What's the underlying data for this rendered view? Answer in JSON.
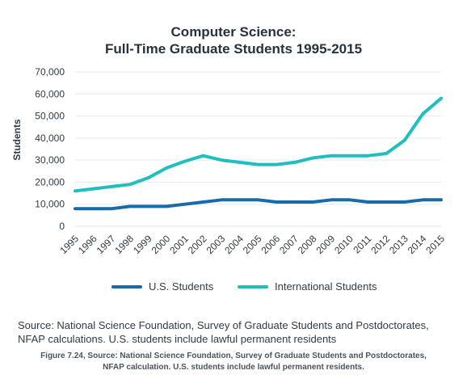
{
  "chart_data": {
    "type": "line",
    "title": "Computer Science:",
    "subtitle": "Full-Time Graduate Students 1995-2015",
    "xlabel": "",
    "ylabel": "Students",
    "categories": [
      "1995",
      "1996",
      "1997",
      "1998",
      "1999",
      "2000",
      "2001",
      "2002",
      "2003",
      "2004",
      "2005",
      "2006",
      "2007",
      "2008",
      "2009",
      "2010",
      "2011",
      "2012",
      "2013",
      "2014",
      "2015"
    ],
    "ylim": [
      0,
      70000
    ],
    "yticks": [
      0,
      10000,
      20000,
      30000,
      40000,
      50000,
      60000,
      70000
    ],
    "ytick_labels": [
      "0",
      "10,000",
      "20,000",
      "30,000",
      "40,000",
      "50,000",
      "60,000",
      "70,000"
    ],
    "grid": "horizontal",
    "legend_position": "bottom",
    "series": [
      {
        "name": "U.S. Students",
        "color": "#1a6aa8",
        "values": [
          8000,
          8000,
          8000,
          9000,
          9000,
          9000,
          10000,
          11000,
          12000,
          12000,
          12000,
          11000,
          11000,
          11000,
          12000,
          12000,
          11000,
          11000,
          11000,
          12000,
          12000
        ]
      },
      {
        "name": "International Students",
        "color": "#1fbfbf",
        "values": [
          16000,
          17000,
          18000,
          19000,
          22000,
          26500,
          29500,
          32000,
          30000,
          29000,
          28000,
          28000,
          29000,
          31000,
          32000,
          32000,
          32000,
          33000,
          39000,
          51000,
          58000
        ]
      }
    ]
  },
  "source_text": "Source: National Science Foundation, Survey of Graduate Students and Postdoctorates, NFAP calculations. U.S. students include lawful permanent residents",
  "caption_line1": "Figure 7.24, Source: National Science Foundation, Survey of Graduate Students and Postdoctorates,",
  "caption_line2": "NFAP calculation.  U.S. students include lawful permanent residents."
}
